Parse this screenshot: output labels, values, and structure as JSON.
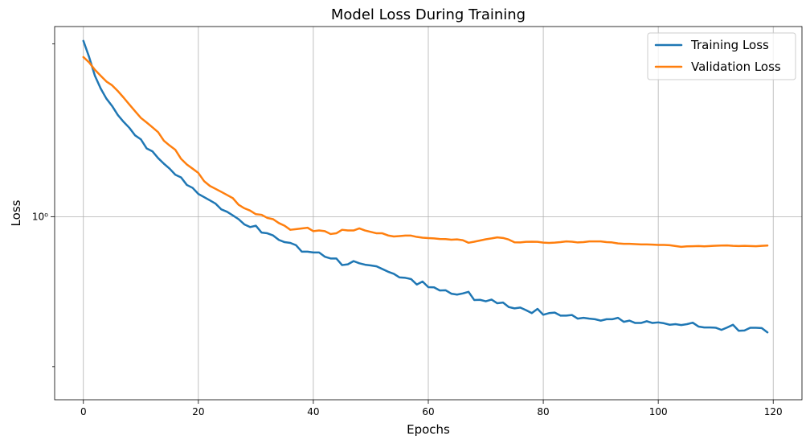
{
  "chart_data": {
    "type": "line",
    "title": "Model Loss During Training",
    "xlabel": "Epochs",
    "ylabel": "Loss",
    "yscale": "log",
    "xlim": [
      -5,
      125
    ],
    "ylim": [
      0.23,
      4.6
    ],
    "grid": true,
    "legend_position": "top-right",
    "xticks": [
      0,
      20,
      40,
      60,
      80,
      100,
      120
    ],
    "xtick_labels": [
      "0",
      "20",
      "40",
      "60",
      "80",
      "100",
      "120"
    ],
    "yticks": [
      1
    ],
    "ytick_labels": [
      "10⁰"
    ],
    "yminor_ticks": [
      0.3,
      4
    ],
    "x": [
      0,
      1,
      2,
      3,
      4,
      5,
      6,
      7,
      8,
      9,
      10,
      11,
      12,
      13,
      14,
      15,
      16,
      17,
      18,
      19,
      20,
      21,
      22,
      23,
      24,
      25,
      26,
      27,
      28,
      29,
      30,
      31,
      32,
      33,
      34,
      35,
      36,
      37,
      38,
      39,
      40,
      41,
      42,
      43,
      44,
      45,
      46,
      47,
      48,
      49,
      50,
      51,
      52,
      53,
      54,
      55,
      56,
      57,
      58,
      59,
      60,
      61,
      62,
      63,
      64,
      65,
      66,
      67,
      68,
      69,
      70,
      71,
      72,
      73,
      74,
      75,
      76,
      77,
      78,
      79,
      80,
      81,
      82,
      83,
      84,
      85,
      86,
      87,
      88,
      89,
      90,
      91,
      92,
      93,
      94,
      95,
      96,
      97,
      98,
      99,
      100,
      101,
      102,
      103,
      104,
      105,
      106,
      107,
      108,
      109,
      110,
      111,
      112,
      113,
      114,
      115,
      116,
      117,
      118,
      119
    ],
    "series": [
      {
        "name": "Training Loss",
        "color": "#1f77b4",
        "values": [
          4.1,
          3.6,
          3.1,
          2.8,
          2.58,
          2.43,
          2.26,
          2.14,
          2.04,
          1.92,
          1.86,
          1.73,
          1.69,
          1.6,
          1.53,
          1.47,
          1.4,
          1.37,
          1.29,
          1.26,
          1.2,
          1.17,
          1.14,
          1.11,
          1.06,
          1.04,
          1.01,
          0.98,
          0.94,
          0.92,
          0.93,
          0.88,
          0.875,
          0.86,
          0.83,
          0.815,
          0.81,
          0.795,
          0.755,
          0.755,
          0.75,
          0.75,
          0.725,
          0.715,
          0.715,
          0.678,
          0.682,
          0.7,
          0.688,
          0.68,
          0.676,
          0.671,
          0.657,
          0.643,
          0.632,
          0.614,
          0.612,
          0.606,
          0.58,
          0.594,
          0.568,
          0.567,
          0.553,
          0.554,
          0.539,
          0.535,
          0.54,
          0.547,
          0.512,
          0.513,
          0.507,
          0.514,
          0.499,
          0.502,
          0.484,
          0.479,
          0.482,
          0.472,
          0.461,
          0.477,
          0.455,
          0.461,
          0.463,
          0.452,
          0.452,
          0.454,
          0.441,
          0.444,
          0.441,
          0.439,
          0.434,
          0.439,
          0.439,
          0.444,
          0.43,
          0.434,
          0.426,
          0.426,
          0.432,
          0.426,
          0.428,
          0.425,
          0.42,
          0.422,
          0.419,
          0.422,
          0.427,
          0.414,
          0.411,
          0.411,
          0.41,
          0.403,
          0.411,
          0.42,
          0.4,
          0.401,
          0.41,
          0.41,
          0.409,
          0.395
        ]
      },
      {
        "name": "Validation Loss",
        "color": "#ff7f0e",
        "values": [
          3.6,
          3.45,
          3.25,
          3.1,
          2.96,
          2.87,
          2.74,
          2.6,
          2.46,
          2.33,
          2.21,
          2.13,
          2.05,
          1.97,
          1.84,
          1.77,
          1.71,
          1.59,
          1.52,
          1.47,
          1.42,
          1.33,
          1.28,
          1.25,
          1.22,
          1.19,
          1.16,
          1.1,
          1.07,
          1.05,
          1.02,
          1.015,
          0.99,
          0.98,
          0.95,
          0.93,
          0.9,
          0.905,
          0.91,
          0.915,
          0.89,
          0.895,
          0.89,
          0.87,
          0.875,
          0.9,
          0.895,
          0.895,
          0.91,
          0.895,
          0.885,
          0.875,
          0.875,
          0.86,
          0.853,
          0.856,
          0.859,
          0.859,
          0.85,
          0.845,
          0.842,
          0.84,
          0.836,
          0.835,
          0.831,
          0.833,
          0.828,
          0.811,
          0.818,
          0.826,
          0.834,
          0.84,
          0.847,
          0.843,
          0.832,
          0.814,
          0.813,
          0.817,
          0.818,
          0.817,
          0.812,
          0.81,
          0.812,
          0.815,
          0.82,
          0.818,
          0.813,
          0.815,
          0.82,
          0.82,
          0.82,
          0.815,
          0.813,
          0.807,
          0.804,
          0.804,
          0.802,
          0.8,
          0.8,
          0.799,
          0.797,
          0.797,
          0.795,
          0.79,
          0.785,
          0.788,
          0.789,
          0.79,
          0.788,
          0.79,
          0.792,
          0.793,
          0.794,
          0.791,
          0.79,
          0.791,
          0.79,
          0.789,
          0.791,
          0.793
        ]
      }
    ]
  }
}
